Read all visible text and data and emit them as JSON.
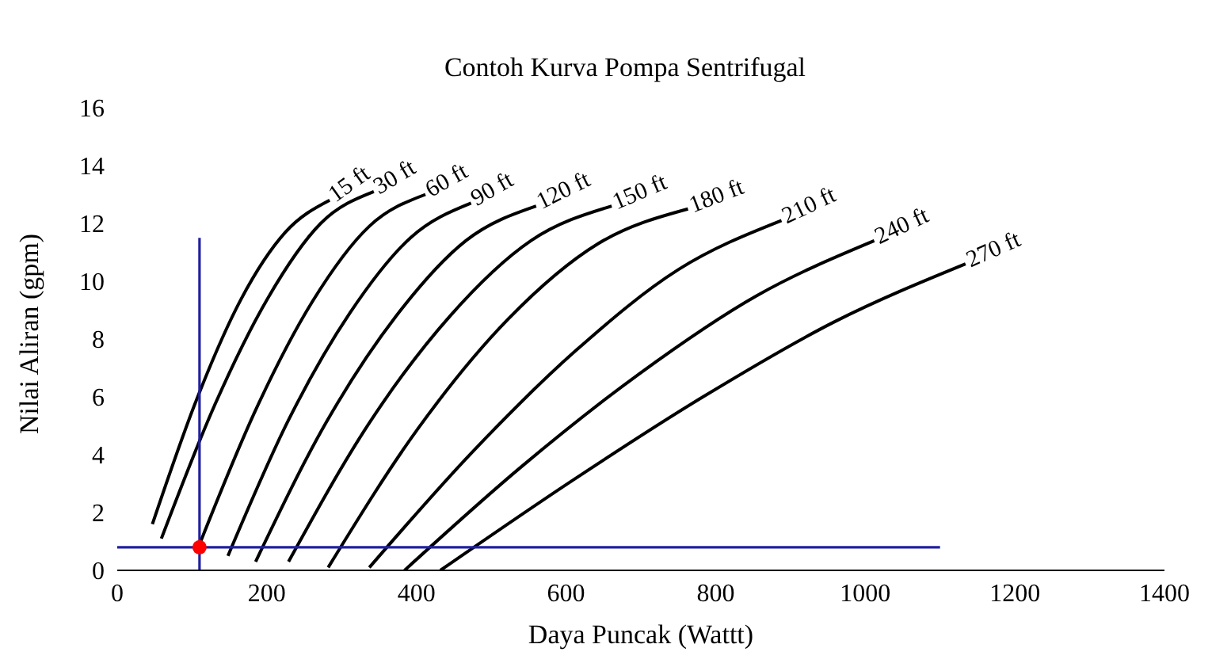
{
  "chart_data": {
    "type": "line",
    "title": "Contoh Kurva Pompa Sentrifugal",
    "xlabel": "Daya Puncak (Wattt)",
    "ylabel": "Nilai Aliran (gpm)",
    "xlim": [
      0,
      1400
    ],
    "xticks": [
      0,
      200,
      400,
      600,
      800,
      1000,
      1200,
      1400
    ],
    "ylim": [
      0,
      16
    ],
    "yticks": [
      0,
      2,
      4,
      6,
      8,
      10,
      12,
      14,
      16
    ],
    "marker": "none",
    "line_style": "solid",
    "series": [
      {
        "name": "15 ft",
        "color": "#000000",
        "x": [
          47,
          106,
          166,
          225,
          284
        ],
        "values": [
          1.6,
          5.9,
          9.4,
          11.7,
          12.8
        ]
      },
      {
        "name": "30 ft",
        "color": "#000000",
        "x": [
          59,
          130,
          201,
          272,
          343
        ],
        "values": [
          1.1,
          5.7,
          9.4,
          12.0,
          13.1
        ]
      },
      {
        "name": "60 ft",
        "color": "#000000",
        "x": [
          110,
          186,
          261,
          337,
          412
        ],
        "values": [
          0.9,
          5.6,
          9.3,
          11.9,
          13.0
        ]
      },
      {
        "name": "90 ft",
        "color": "#000000",
        "x": [
          148,
          229,
          311,
          392,
          473
        ],
        "values": [
          0.5,
          5.2,
          8.9,
          11.5,
          12.7
        ]
      },
      {
        "name": "120 ft",
        "color": "#000000",
        "x": [
          185,
          279,
          373,
          466,
          560
        ],
        "values": [
          0.3,
          5.1,
          8.8,
          11.4,
          12.6
        ]
      },
      {
        "name": "150 ft",
        "color": "#000000",
        "x": [
          229,
          337,
          445,
          553,
          661
        ],
        "values": [
          0.3,
          5.1,
          8.8,
          11.4,
          12.6
        ]
      },
      {
        "name": "180 ft",
        "color": "#000000",
        "x": [
          282,
          402,
          523,
          643,
          763
        ],
        "values": [
          0.1,
          4.9,
          8.7,
          11.3,
          12.5
        ]
      },
      {
        "name": "210 ft",
        "color": "#000000",
        "x": [
          337,
          475,
          613,
          750,
          888
        ],
        "values": [
          0.1,
          4.1,
          7.6,
          10.4,
          12.1
        ]
      },
      {
        "name": "240 ft",
        "color": "#000000",
        "x": [
          384,
          541,
          698,
          855,
          1012
        ],
        "values": [
          0,
          3.6,
          6.8,
          9.5,
          11.4
        ]
      },
      {
        "name": "270 ft",
        "color": "#000000",
        "x": [
          432,
          608,
          783,
          959,
          1134
        ],
        "values": [
          0,
          3.1,
          6.0,
          8.6,
          10.6
        ]
      },
      {
        "color": "#2020a0",
        "x": [
          110,
          110
        ],
        "values": [
          0,
          11.5
        ]
      },
      {
        "color": "#2020a0",
        "x": [
          0,
          1100
        ],
        "values": [
          0.8,
          0.8
        ]
      },
      {
        "type": "scatter",
        "marker": "circle",
        "color": "#ff0000",
        "x": [
          110
        ],
        "values": [
          0.8
        ]
      }
    ]
  }
}
